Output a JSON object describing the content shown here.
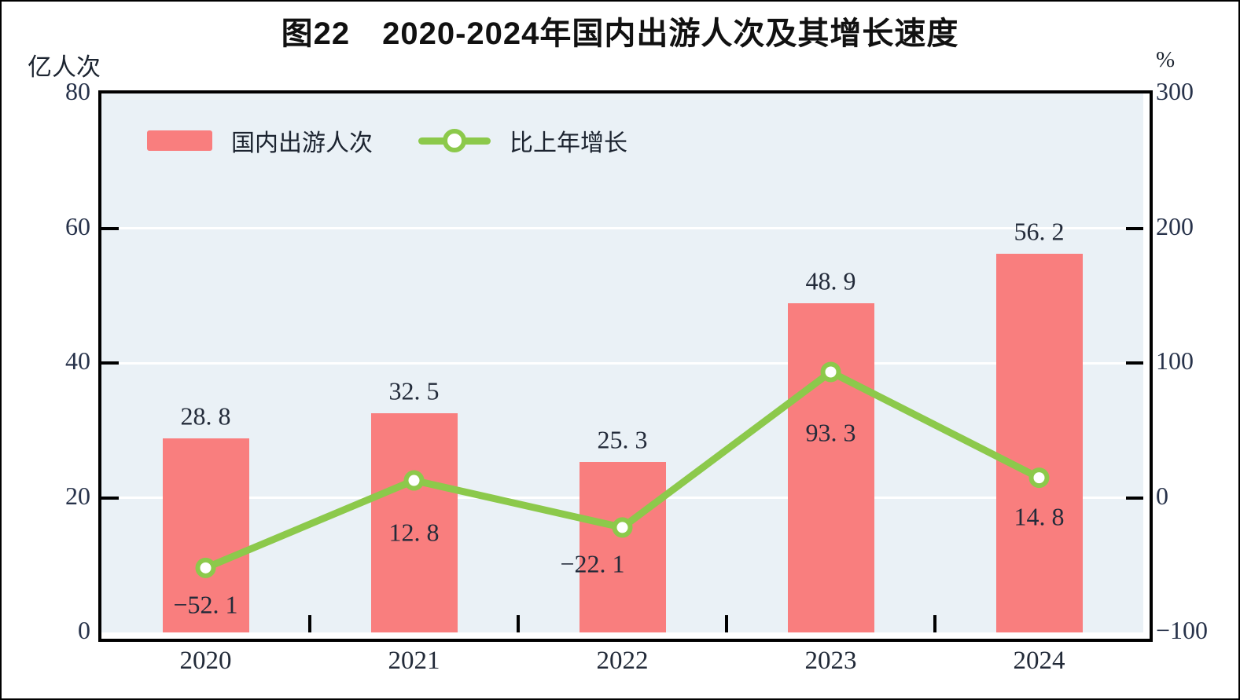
{
  "title": "图22　2020-2024年国内出游人次及其增长速度",
  "colors": {
    "bar": "#f97e7e",
    "line": "#8cc94b",
    "plot_background": "#eaf1f6",
    "gridline": "#ffffff",
    "axis": "#000000",
    "text": "#232b3a"
  },
  "legend": {
    "bar_label": "国内出游人次",
    "line_label": "比上年增长"
  },
  "axes": {
    "left_unit": "亿人次",
    "right_unit": "%",
    "left_tick_labels": [
      "80",
      "60",
      "40",
      "20",
      "0"
    ],
    "right_tick_labels": [
      "300",
      "200",
      "100",
      "0",
      "−100"
    ],
    "x_tick_labels": [
      "2020",
      "2021",
      "2022",
      "2023",
      "2024"
    ]
  },
  "chart_data": {
    "type": "combo",
    "title": "图22 2020-2024年国内出游人次及其增长速度",
    "categories": [
      "2020",
      "2021",
      "2022",
      "2023",
      "2024"
    ],
    "series": [
      {
        "name": "国内出游人次",
        "type": "bar",
        "axis": "left",
        "values": [
          28.8,
          32.5,
          25.3,
          48.9,
          56.2
        ],
        "labels": [
          "28. 8",
          "32. 5",
          "25. 3",
          "48. 9",
          "56. 2"
        ]
      },
      {
        "name": "比上年增长",
        "type": "line",
        "axis": "right",
        "values": [
          -52.1,
          12.8,
          -22.1,
          93.3,
          14.8
        ],
        "labels": [
          "−52. 1",
          "12. 8",
          "−22. 1",
          "93. 3",
          "14. 8"
        ]
      }
    ],
    "left_axis": {
      "label": "亿人次",
      "range": [
        0,
        80
      ],
      "ticks": [
        0,
        20,
        40,
        60,
        80
      ]
    },
    "right_axis": {
      "label": "%",
      "range": [
        -100,
        300
      ],
      "ticks": [
        -100,
        0,
        100,
        200,
        300
      ]
    },
    "grid": true,
    "legend_position": "inside-top-left"
  }
}
